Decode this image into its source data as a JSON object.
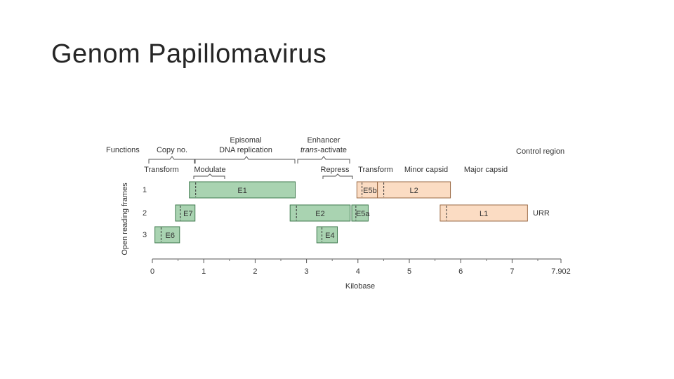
{
  "slide": {
    "title": "Genom Papillomavirus"
  },
  "colors": {
    "early": "#a9d3b1",
    "early_stroke": "#3f7a4e",
    "late": "#fbdcc3",
    "late_stroke": "#9a6a44",
    "text": "#333333",
    "bracket": "#555555"
  },
  "diagram": {
    "functions_label": "Functions",
    "control_region_label": "Control region",
    "y_axis_label": "Open reading frames",
    "x_axis_label": "Kilobase",
    "frame_labels": [
      "1",
      "2",
      "3"
    ],
    "x_ticks": [
      "0",
      "1",
      "2",
      "3",
      "4",
      "5",
      "6",
      "7",
      "7.902"
    ],
    "upper_functions": [
      {
        "id": "copy",
        "text": "Copy no."
      },
      {
        "id": "episomal1",
        "text": "Episomal"
      },
      {
        "id": "episomal2",
        "text": "DNA replication"
      },
      {
        "id": "enhancer1",
        "text": "Enhancer"
      },
      {
        "id": "enhancer2a",
        "text": "trans"
      },
      {
        "id": "enhancer2b",
        "text": "-activate"
      }
    ],
    "lower_functions": [
      {
        "id": "transform_left",
        "text": "Transform"
      },
      {
        "id": "modulate",
        "text": "Modulate"
      },
      {
        "id": "repress",
        "text": "Repress"
      },
      {
        "id": "transform_right",
        "text": "Transform"
      },
      {
        "id": "minor",
        "text": "Minor capsid"
      },
      {
        "id": "major",
        "text": "Major capsid"
      }
    ],
    "orfs": [
      {
        "name": "E1",
        "frame": 1,
        "start": 0.72,
        "end": 2.78,
        "group": "early"
      },
      {
        "name": "E5b",
        "frame": 1,
        "start": 3.98,
        "end": 4.38,
        "group": "late"
      },
      {
        "name": "L2",
        "frame": 1,
        "start": 4.38,
        "end": 5.8,
        "group": "late"
      },
      {
        "name": "E7",
        "frame": 2,
        "start": 0.45,
        "end": 0.83,
        "group": "early"
      },
      {
        "name": "E2",
        "frame": 2,
        "start": 2.68,
        "end": 3.85,
        "group": "early"
      },
      {
        "name": "E5a",
        "frame": 2,
        "start": 3.88,
        "end": 4.2,
        "group": "early"
      },
      {
        "name": "L1",
        "frame": 2,
        "start": 5.6,
        "end": 7.3,
        "group": "late"
      },
      {
        "name": "E6",
        "frame": 3,
        "start": 0.05,
        "end": 0.53,
        "group": "early"
      },
      {
        "name": "E4",
        "frame": 3,
        "start": 3.2,
        "end": 3.6,
        "group": "early"
      }
    ],
    "urr_label": "URR"
  }
}
